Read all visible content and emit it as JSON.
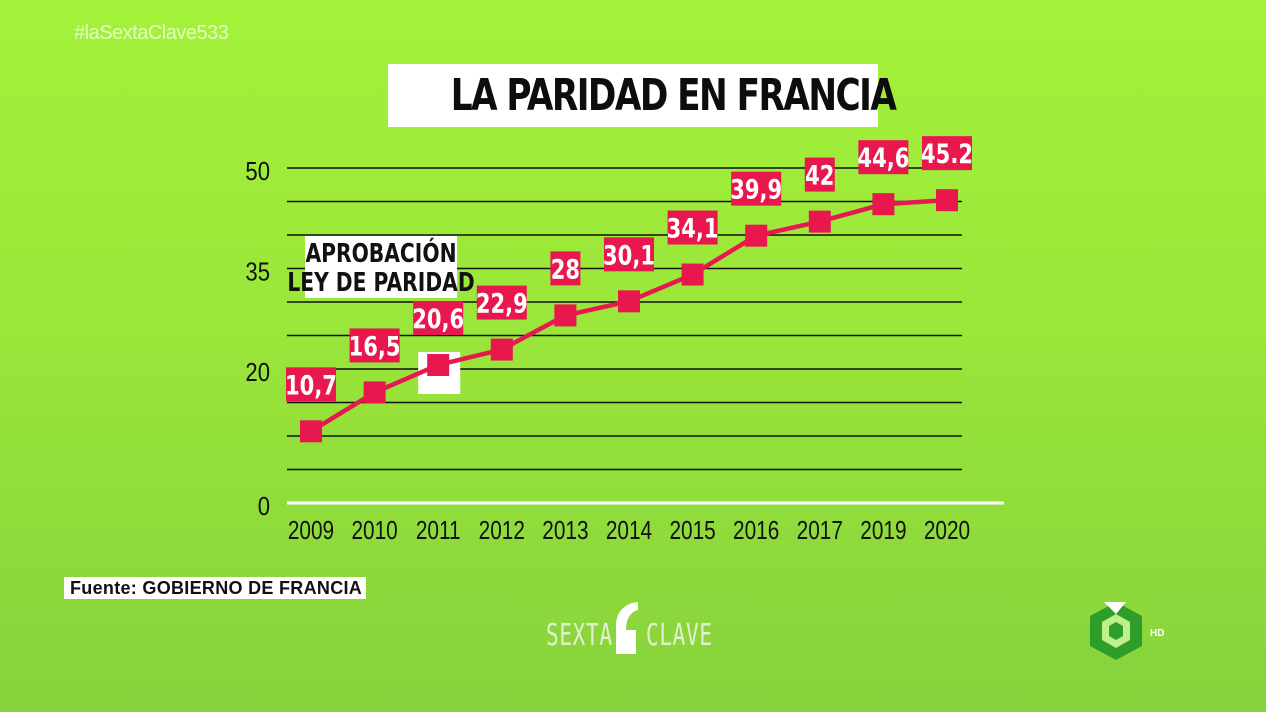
{
  "hashtag": "#laSextaClave533",
  "title": "LA PARIDAD EN FRANCIA",
  "source": "Fuente: GOBIERNO DE FRANCIA",
  "brand": {
    "left": "SEXTA",
    "right": "CLAVE"
  },
  "channel": {
    "hd_label": "HD"
  },
  "colors": {
    "background": "#9fee3a",
    "series": "#e8184f",
    "label_bg": "#e8184f",
    "grid": "#111111"
  },
  "chart_data": {
    "type": "line",
    "title": "LA PARIDAD EN FRANCIA",
    "xlabel": "",
    "ylabel": "",
    "categories": [
      "2009",
      "2010",
      "2011",
      "2012",
      "2013",
      "2014",
      "2015",
      "2016",
      "2017",
      "2019",
      "2020"
    ],
    "values": [
      10.7,
      16.5,
      20.6,
      22.9,
      28,
      30.1,
      34.1,
      39.9,
      42,
      44.6,
      45.2
    ],
    "data_labels": [
      "10,7",
      "16,5",
      "20,6",
      "22,9",
      "28",
      "30,1",
      "34,1",
      "39,9",
      "42",
      "44,6",
      "45.2"
    ],
    "y_ticks": [
      0,
      20,
      35,
      50
    ],
    "ylim": [
      0,
      50
    ],
    "grid": true,
    "annotation": {
      "category": "2011",
      "lines": [
        "APROBACIÓN",
        "LEY DE PARIDAD"
      ]
    }
  }
}
